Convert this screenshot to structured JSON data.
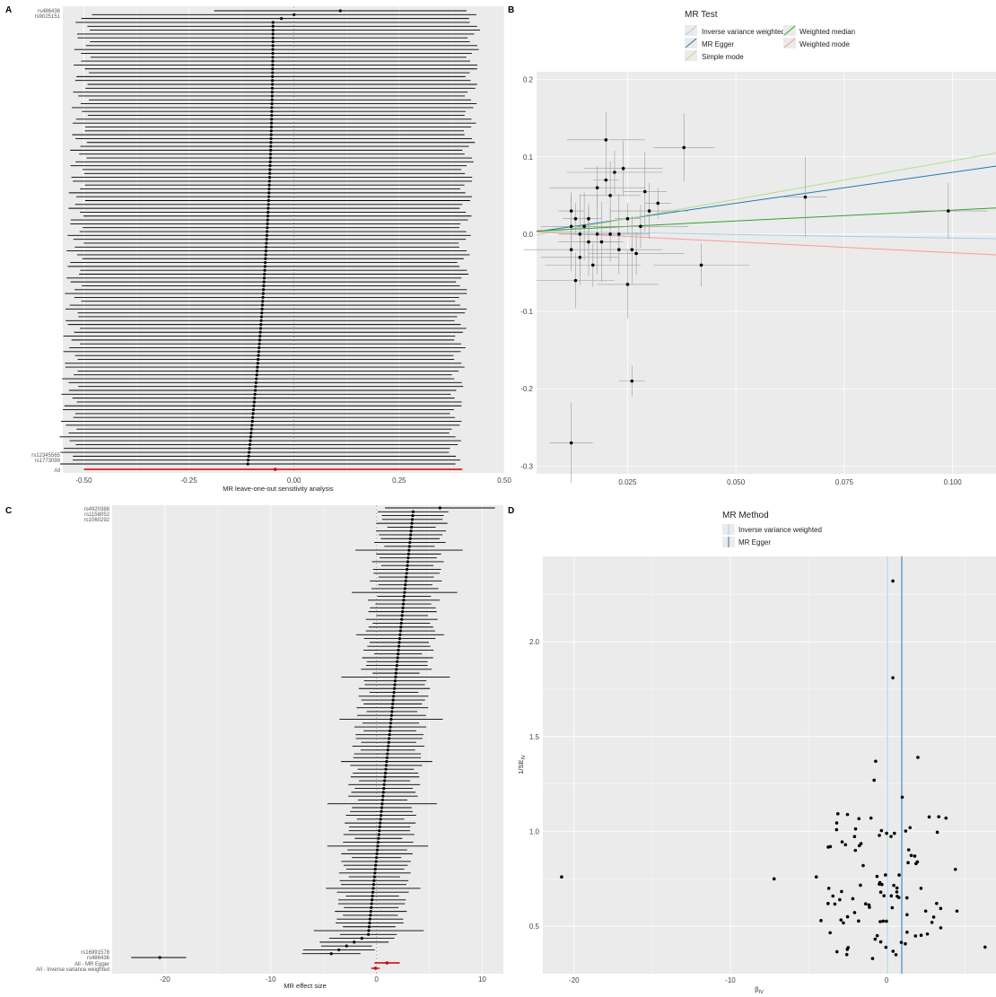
{
  "panels": {
    "A": {
      "letter": "A",
      "xlabel": "MR leave-one-out sensitivity analysis",
      "xlim": [
        -0.55,
        0.5
      ],
      "xticks": [
        -0.5,
        -0.25,
        0.0,
        0.25,
        0.5
      ],
      "xtick_labels": [
        "-0.50",
        "-0.25",
        "0.00",
        "0.25",
        "0.50"
      ],
      "all_label": "All",
      "first_snps": [
        "rs486436",
        "rs9025151"
      ],
      "last_snps": [
        "rs12345565",
        "rs1773099"
      ],
      "n_snps": 118
    },
    "B": {
      "letter": "B",
      "legend_title": "MR Test",
      "legend_items": [
        "Inverse variance weighted",
        "MR Egger",
        "Simple mode",
        "Weighted median",
        "Weighted mode"
      ],
      "xticks": [
        0.025,
        0.05,
        0.075,
        0.1
      ],
      "xtick_labels": [
        "0.025",
        "0.050",
        "0.075",
        "0.100"
      ],
      "yticks": [
        -0.3,
        -0.2,
        -0.1,
        0.0,
        0.1,
        0.2
      ],
      "ytick_labels": [
        "-0.3",
        "-0.2",
        "-0.1",
        "0.0",
        "0.1",
        "0.2"
      ],
      "xlim": [
        0.004,
        0.11
      ],
      "ylim": [
        -0.31,
        0.21
      ]
    },
    "C": {
      "letter": "C",
      "xlabel": "MR effect size",
      "xlim": [
        -25,
        12
      ],
      "xticks": [
        -20,
        -10,
        0,
        10
      ],
      "xtick_labels": [
        "-20",
        "-10",
        "0",
        "10"
      ],
      "summary_labels": [
        "All - MR Egger",
        "All - Inverse variance weighted"
      ],
      "first_snps": [
        "rs4920388",
        "rs1158052",
        "rs1060292"
      ],
      "last_snps": [
        "rs16991578",
        "rs486436"
      ],
      "n_snps": 118
    },
    "D": {
      "letter": "D",
      "legend_title": "MR Method",
      "legend_items": [
        "Inverse variance weighted",
        "MR Egger"
      ],
      "xlabel": "β",
      "xlabel_sub": "IV",
      "ylabel": "1/SE",
      "ylabel_sub": "IV",
      "xlim": [
        -22,
        7
      ],
      "ylim": [
        0.25,
        2.45
      ],
      "xticks": [
        -20,
        -10,
        0
      ],
      "xtick_labels": [
        "-20",
        "-10",
        "0"
      ],
      "yticks": [
        0.5,
        1.0,
        1.5,
        2.0
      ],
      "ytick_labels": [
        "0.5",
        "1.0",
        "1.5",
        "2.0"
      ]
    }
  },
  "colors": {
    "panel_bg": "#ebebeb",
    "grid": "#ffffff",
    "ivw": "#a6cee3",
    "egger": "#1f78b4",
    "simple_mode": "#b2df8a",
    "weighted_median": "#33a02c",
    "weighted_mode": "#fb9a99",
    "summary": "#cc0000"
  },
  "chart_data": [
    {
      "type": "scatter",
      "name": "leave-one-out",
      "description_series": "estimates with CI",
      "all": {
        "estimate": -0.045,
        "lower": -0.5,
        "upper": 0.4
      },
      "estimates_first": [
        0.11,
        0.0,
        -0.03,
        -0.05
      ],
      "estimate_range": [
        -0.11,
        0.11
      ]
    },
    {
      "type": "scatter",
      "name": "scatter SNP effects",
      "x": [
        0.012,
        0.012,
        0.012,
        0.014,
        0.014,
        0.016,
        0.016,
        0.018,
        0.018,
        0.02,
        0.02,
        0.021,
        0.022,
        0.023,
        0.024,
        0.025,
        0.026,
        0.028,
        0.029,
        0.03,
        0.032,
        0.038,
        0.042,
        0.066,
        0.099,
        0.013,
        0.015,
        0.017,
        0.019,
        0.021,
        0.023,
        0.025,
        0.027,
        0.012,
        0.013,
        0.026
      ],
      "y": [
        0.03,
        0.01,
        -0.02,
        0.0,
        -0.03,
        0.02,
        -0.01,
        0.06,
        0.0,
        0.122,
        0.07,
        0.05,
        0.08,
        0.0,
        0.085,
        0.02,
        -0.02,
        0.01,
        0.055,
        0.03,
        0.04,
        0.112,
        -0.04,
        0.048,
        0.03,
        0.02,
        0.01,
        -0.04,
        -0.01,
        0.0,
        -0.02,
        -0.065,
        -0.025,
        -0.27,
        -0.06,
        -0.19
      ],
      "lines": [
        {
          "method": "Inverse variance weighted",
          "slope": -0.09,
          "intercept": 0.004
        },
        {
          "method": "MR Egger",
          "slope": 0.8,
          "intercept": -0.0,
          "from_x": -0.01
        },
        {
          "method": "Simple mode",
          "slope": 1.0,
          "intercept": -0.005
        },
        {
          "method": "Weighted median",
          "slope": 0.28,
          "intercept": 0.003
        },
        {
          "method": "Weighted mode",
          "slope": -0.28,
          "intercept": 0.004
        }
      ]
    },
    {
      "type": "scatter",
      "name": "single SNP effects",
      "estimate_range": [
        -7.0,
        6.0
      ],
      "outlier": {
        "estimate": -20.5,
        "lower": -23.2,
        "upper": -18.0
      },
      "egger": {
        "estimate": 1.0,
        "lower": -0.2,
        "upper": 2.2
      },
      "ivw": {
        "estimate": -0.1,
        "lower": -0.5,
        "upper": 0.3
      }
    },
    {
      "type": "scatter",
      "name": "funnel",
      "points": [
        [
          -20.8,
          0.76
        ],
        [
          -7.2,
          0.75
        ],
        [
          -4.5,
          0.76
        ],
        [
          0.4,
          2.32
        ],
        [
          0.4,
          1.81
        ],
        [
          2.0,
          1.39
        ],
        [
          -0.7,
          1.37
        ],
        [
          -0.8,
          1.27
        ],
        [
          1.0,
          1.18
        ],
        [
          3.8,
          1.07
        ],
        [
          -1.0,
          1.07
        ],
        [
          0.0,
          0.99
        ],
        [
          0.5,
          0.99
        ],
        [
          1.5,
          1.02
        ],
        [
          4.4,
          0.8
        ],
        [
          6.3,
          0.39
        ],
        [
          -3.6,
          0.92
        ],
        [
          -3.7,
          0.7
        ],
        [
          -4.2,
          0.53
        ],
        [
          -2.0,
          0.9
        ],
        [
          -1.5,
          0.82
        ],
        [
          -1.1,
          0.6
        ],
        [
          -0.9,
          0.33
        ],
        [
          -0.6,
          0.45
        ],
        [
          0.8,
          0.77
        ],
        [
          1.3,
          0.65
        ],
        [
          2.2,
          0.7
        ],
        [
          2.5,
          0.58
        ],
        [
          3.2,
          0.62
        ],
        [
          4.5,
          0.58
        ],
        [
          1.8,
          0.87
        ],
        [
          0.3,
          0.66
        ],
        [
          -2.5,
          0.55
        ],
        [
          -3.0,
          0.64
        ],
        [
          0.6,
          0.35
        ],
        [
          2.9,
          0.52
        ],
        [
          -0.3,
          0.72
        ]
      ],
      "ivw_x": 0.04,
      "egger_x": 0.97
    }
  ]
}
